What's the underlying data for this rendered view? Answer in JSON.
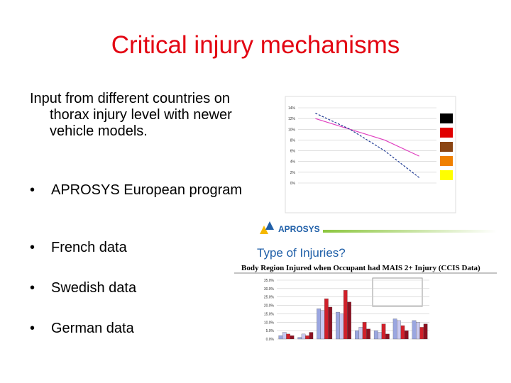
{
  "slide": {
    "title": "Critical injury mechanisms",
    "intro": "Input from different countries on thorax injury level with newer vehicle models.",
    "bullets": [
      "APROSYS European program",
      "French data",
      "Swedish data",
      "German data"
    ]
  },
  "figures": {
    "logo": "APROSYS",
    "heading": "Type of Injuries?",
    "bar_title": "Body Region Injured when Occupant had MAIS 2+ Injury (CCIS Data)",
    "line_chart": {
      "type": "line",
      "ylim": [
        0,
        14
      ],
      "yticks": [
        {
          "value": 0,
          "label": "0%"
        },
        {
          "value": 2,
          "label": "2%"
        },
        {
          "value": 4,
          "label": "4%"
        },
        {
          "value": 6,
          "label": "6%"
        },
        {
          "value": 8,
          "label": "8%"
        },
        {
          "value": 10,
          "label": "10%"
        },
        {
          "value": 12,
          "label": "12%"
        },
        {
          "value": 14,
          "label": "14%"
        }
      ],
      "series": [
        {
          "color": "#e040c0",
          "values": [
            12,
            10,
            8,
            5
          ]
        },
        {
          "color": "#1f3a93",
          "values": [
            13,
            10,
            6,
            1
          ]
        }
      ]
    },
    "bar_chart": {
      "type": "bar",
      "ylim": [
        0,
        35
      ],
      "yticks": [
        {
          "value": 0,
          "label": "0.0%"
        },
        {
          "value": 5,
          "label": "5.0%"
        },
        {
          "value": 10,
          "label": "10.0%"
        },
        {
          "value": 15,
          "label": "15.0%"
        },
        {
          "value": 20,
          "label": "20.0%"
        },
        {
          "value": 25,
          "label": "25.0%"
        },
        {
          "value": 30,
          "label": "30.0%"
        },
        {
          "value": 35,
          "label": "35.0%"
        }
      ],
      "series": [
        {
          "color": "#9aa6e0",
          "values": [
            2,
            1,
            18,
            16,
            5,
            5,
            12,
            11
          ]
        },
        {
          "color": "#c8c8f0",
          "values": [
            4,
            3,
            17,
            15,
            7,
            4,
            11,
            10
          ]
        },
        {
          "color": "#d0202a",
          "values": [
            3,
            2,
            24,
            29,
            10,
            9,
            8,
            7
          ]
        },
        {
          "color": "#8b1020",
          "values": [
            2,
            4,
            19,
            22,
            6,
            3,
            5,
            9
          ]
        }
      ]
    }
  }
}
